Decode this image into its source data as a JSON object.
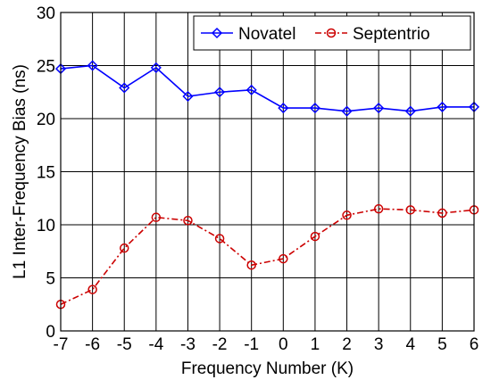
{
  "chart_data": {
    "type": "line",
    "title": "",
    "xlabel": "Frequency Number (K)",
    "ylabel": "L1 Inter-Frequency Bias (ns)",
    "xlim": [
      -7,
      6
    ],
    "ylim": [
      0,
      30
    ],
    "x_ticks": [
      -7,
      -6,
      -5,
      -4,
      -3,
      -2,
      -1,
      0,
      1,
      2,
      3,
      4,
      5,
      6
    ],
    "y_ticks": [
      0,
      5,
      10,
      15,
      20,
      25,
      30
    ],
    "grid": true,
    "legend_position": "top-right",
    "x": [
      -7,
      -6,
      -5,
      -4,
      -3,
      -2,
      -1,
      0,
      1,
      2,
      3,
      4,
      5,
      6
    ],
    "series": [
      {
        "name": "Novatel",
        "color": "#0000ff",
        "marker": "diamond",
        "line_style": "solid",
        "values": [
          24.7,
          25.0,
          22.9,
          24.8,
          22.1,
          22.5,
          22.7,
          21.0,
          21.0,
          20.7,
          21.0,
          20.7,
          21.1,
          21.1
        ]
      },
      {
        "name": "Septentrio",
        "color": "#cc0000",
        "marker": "circle",
        "line_style": "dash-dot",
        "values": [
          2.5,
          3.9,
          7.8,
          10.7,
          10.4,
          8.7,
          6.2,
          6.8,
          8.9,
          10.9,
          11.5,
          11.4,
          11.1,
          11.4
        ]
      }
    ]
  }
}
